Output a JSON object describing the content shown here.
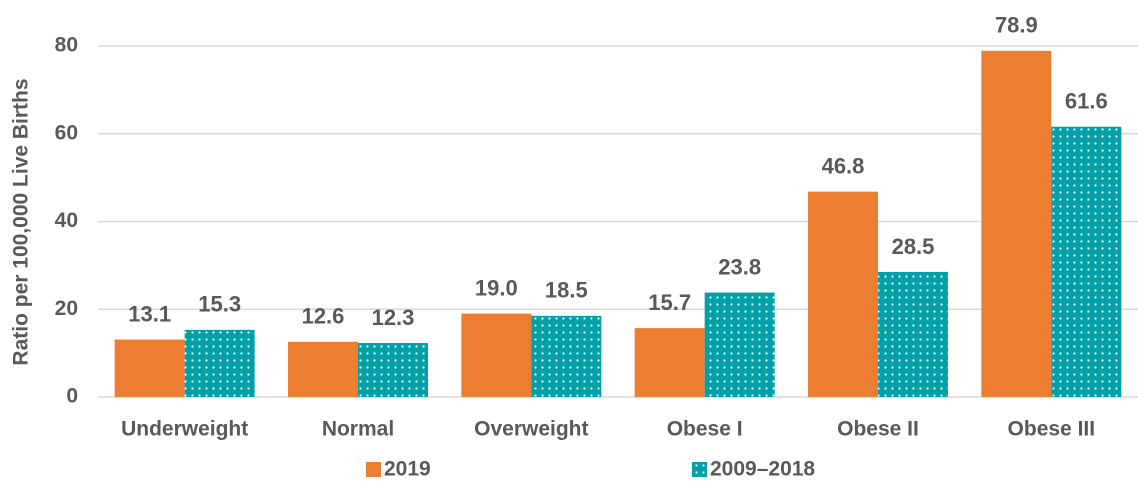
{
  "chart_data": {
    "type": "bar",
    "y_label": "Ratio per 100,000 Live Births",
    "categories": [
      "Underweight",
      "Normal",
      "Overweight",
      "Obese I",
      "Obese II",
      "Obese III"
    ],
    "series": [
      {
        "name": "2019",
        "color": "#ed7d31",
        "values": [
          13.1,
          12.6,
          19.0,
          15.7,
          46.8,
          78.9
        ],
        "value_labels": [
          "13.1",
          "12.6",
          "19.0",
          "15.7",
          "46.8",
          "78.9"
        ]
      },
      {
        "name": "2009–2018",
        "color": "#00a0a8",
        "pattern": "dots",
        "values": [
          15.3,
          12.3,
          18.5,
          23.8,
          28.5,
          61.6
        ],
        "value_labels": [
          "15.3",
          "12.3",
          "18.5",
          "23.8",
          "28.5",
          "61.6"
        ]
      }
    ],
    "ylim": [
      0,
      80
    ],
    "yticks": [
      0,
      20,
      40,
      60,
      80
    ],
    "grid": true,
    "legend": "bottom"
  }
}
